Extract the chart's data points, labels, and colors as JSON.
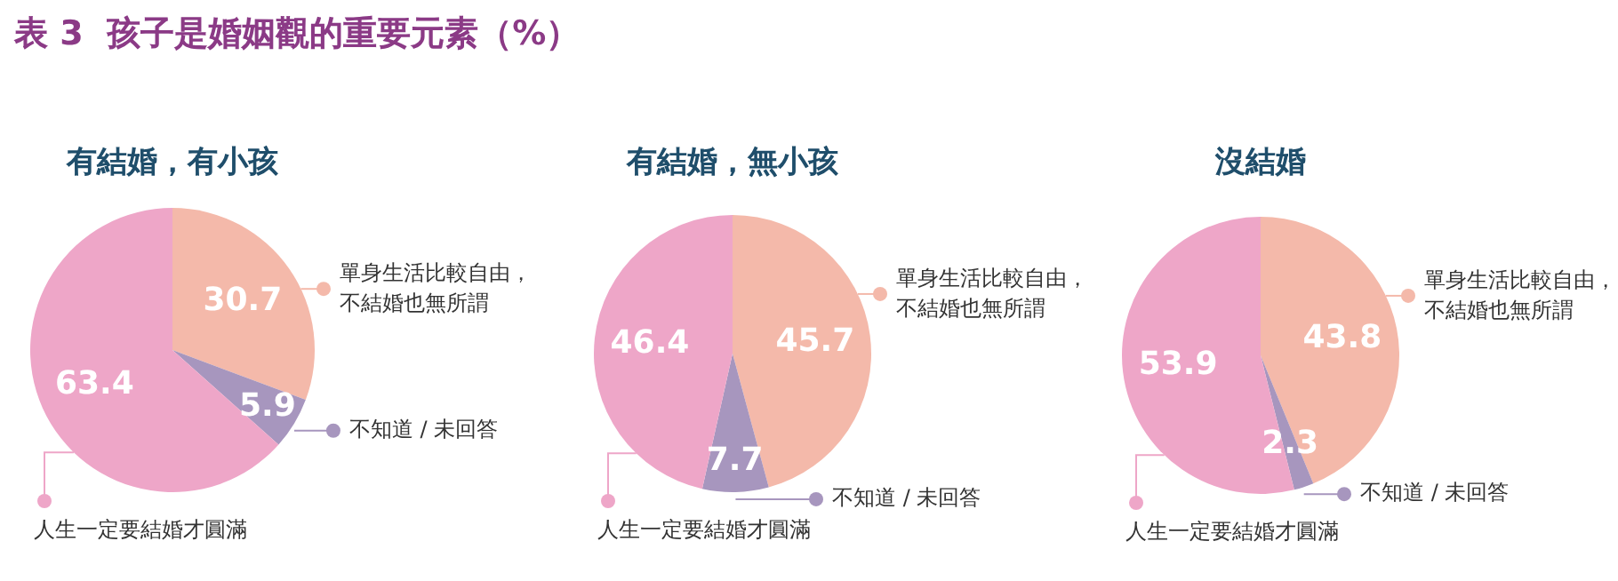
{
  "chart_data": [
    {
      "type": "pie",
      "title": "有結婚，有小孩",
      "annotations": [
        "表 3  孩子是婚姻觀的重要元素（%）"
      ],
      "categories": [
        "單身生活比較自由，不結婚也無所謂",
        "不知道 / 未回答",
        "人生一定要結婚才圓滿"
      ],
      "values": [
        30.7,
        5.9,
        63.4
      ],
      "colors": [
        "#f4b9aa",
        "#a796be",
        "#eea6c8"
      ],
      "data_labels": true,
      "legend": "right"
    },
    {
      "type": "pie",
      "title": "有結婚，無小孩",
      "categories": [
        "單身生活比較自由，不結婚也無所謂",
        "不知道 / 未回答",
        "人生一定要結婚才圓滿"
      ],
      "values": [
        45.7,
        7.7,
        46.4
      ],
      "colors": [
        "#f4b9aa",
        "#a796be",
        "#eea6c8"
      ],
      "data_labels": true,
      "legend": "right"
    },
    {
      "type": "pie",
      "title": "沒結婚",
      "categories": [
        "單身生活比較自由，不結婚也無所謂",
        "不知道 / 未回答",
        "人生一定要結婚才圓滿"
      ],
      "values": [
        43.8,
        2.3,
        53.9
      ],
      "colors": [
        "#f4b9aa",
        "#a796be",
        "#eea6c8"
      ],
      "data_labels": true,
      "legend": "right"
    }
  ]
}
